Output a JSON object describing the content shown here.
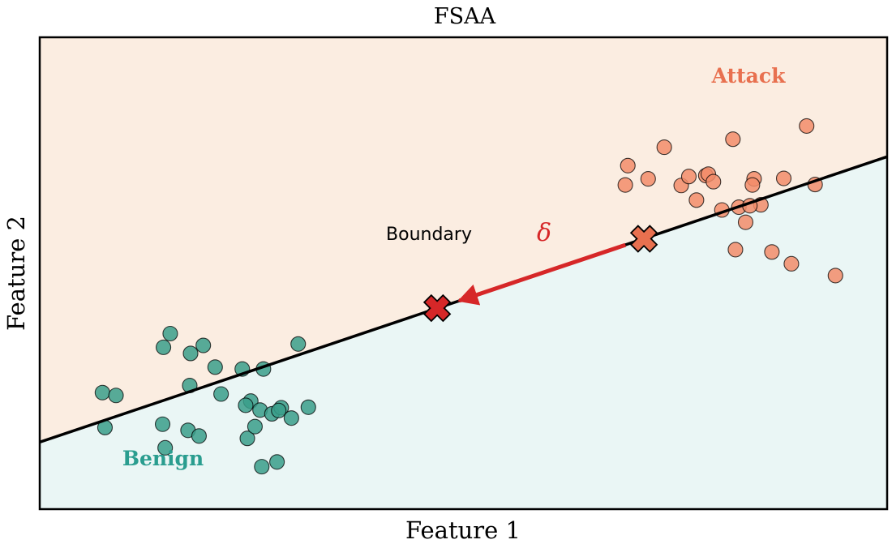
{
  "chart_data": {
    "type": "scatter",
    "title": "FSAA",
    "xlabel": "Feature 1",
    "ylabel": "Feature 2",
    "xlim": [
      0,
      1
    ],
    "ylim": [
      0,
      1
    ],
    "grid": false,
    "axis_ticks": false,
    "boundary": {
      "label": "Boundary",
      "points": [
        [
          0,
          0.142
        ],
        [
          1,
          0.747
        ]
      ]
    },
    "regions": [
      {
        "label": "Attack",
        "side": "above",
        "color": "#fbede1",
        "label_color": "#e8704f"
      },
      {
        "label": "Benign",
        "side": "below",
        "color": "#eaf6f5",
        "label_color": "#2a9d8f"
      }
    ],
    "series": [
      {
        "name": "Attack",
        "color": "#f28c6a",
        "points": [
          [
            0.691,
            0.687
          ],
          [
            0.694,
            0.728
          ],
          [
            0.718,
            0.7
          ],
          [
            0.737,
            0.767
          ],
          [
            0.757,
            0.686
          ],
          [
            0.766,
            0.705
          ],
          [
            0.775,
            0.655
          ],
          [
            0.786,
            0.707
          ],
          [
            0.789,
            0.71
          ],
          [
            0.795,
            0.694
          ],
          [
            0.805,
            0.634
          ],
          [
            0.818,
            0.784
          ],
          [
            0.843,
            0.7
          ],
          [
            0.841,
            0.687
          ],
          [
            0.851,
            0.645
          ],
          [
            0.878,
            0.701
          ],
          [
            0.905,
            0.812
          ],
          [
            0.915,
            0.688
          ],
          [
            0.821,
            0.55
          ],
          [
            0.825,
            0.64
          ],
          [
            0.833,
            0.608
          ],
          [
            0.838,
            0.643
          ],
          [
            0.864,
            0.545
          ],
          [
            0.887,
            0.52
          ],
          [
            0.939,
            0.495
          ]
        ]
      },
      {
        "name": "Benign",
        "color": "#3a9e8a",
        "points": [
          [
            0.074,
            0.247
          ],
          [
            0.09,
            0.241
          ],
          [
            0.154,
            0.372
          ],
          [
            0.146,
            0.343
          ],
          [
            0.178,
            0.33
          ],
          [
            0.193,
            0.347
          ],
          [
            0.207,
            0.301
          ],
          [
            0.177,
            0.262
          ],
          [
            0.077,
            0.173
          ],
          [
            0.214,
            0.244
          ],
          [
            0.239,
            0.297
          ],
          [
            0.249,
            0.229
          ],
          [
            0.243,
            0.22
          ],
          [
            0.26,
            0.21
          ],
          [
            0.264,
            0.297
          ],
          [
            0.274,
            0.202
          ],
          [
            0.285,
            0.215
          ],
          [
            0.282,
            0.209
          ],
          [
            0.297,
            0.193
          ],
          [
            0.305,
            0.35
          ],
          [
            0.317,
            0.216
          ],
          [
            0.145,
            0.18
          ],
          [
            0.175,
            0.167
          ],
          [
            0.188,
            0.155
          ],
          [
            0.245,
            0.15
          ],
          [
            0.28,
            0.1
          ],
          [
            0.148,
            0.13
          ],
          [
            0.254,
            0.175
          ],
          [
            0.262,
            0.09
          ]
        ]
      }
    ],
    "perturbation": {
      "label": "δ",
      "label_color": "#d62728",
      "arrow_color": "#d62728",
      "start": {
        "x": 0.713,
        "y": 0.573,
        "color": "#e8704f"
      },
      "end": {
        "x": 0.469,
        "y": 0.426,
        "color": "#d62728"
      }
    }
  }
}
